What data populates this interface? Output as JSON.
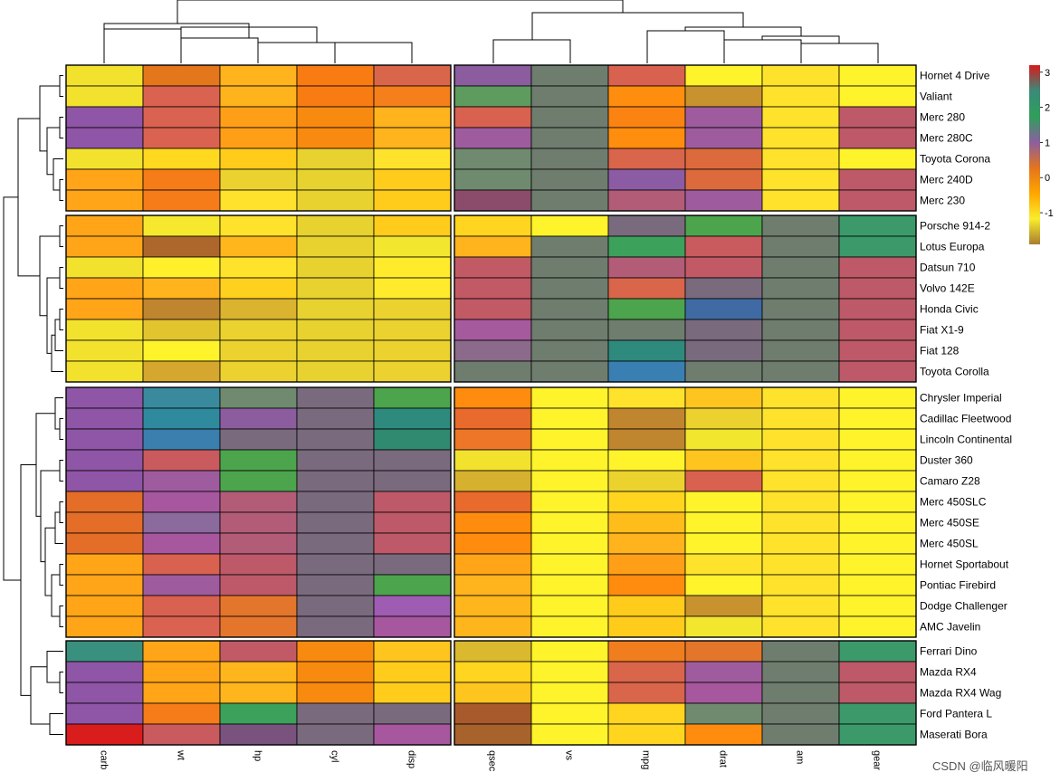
{
  "chart_data": {
    "type": "heatmap",
    "title": "",
    "value_scale": "z-score",
    "colorbar_ticks": [
      3,
      2,
      1,
      0,
      -1
    ],
    "colorbar_ticks_label": [
      "3",
      "2",
      "1",
      "0",
      "-1"
    ],
    "colorbar_range": [
      -1.9,
      3.2
    ],
    "colorbar_stops": [
      "#d7191c",
      "#3a8a7a",
      "#2f9f5a",
      "#8b5fa0",
      "#e2741e",
      "#ffa500",
      "#f8ee2c",
      "#a87d30"
    ],
    "column_groups": [
      [
        "carb",
        "wt",
        "hp",
        "cyl",
        "disp"
      ],
      [
        "qsec",
        "vs",
        "mpg",
        "drat",
        "am",
        "gear"
      ]
    ],
    "row_groups": [
      [
        "Hornet 4 Drive",
        "Valiant",
        "Merc 280",
        "Merc 280C",
        "Toyota Corona",
        "Merc 240D",
        "Merc 230"
      ],
      [
        "Porsche 914-2",
        "Lotus Europa",
        "Datsun 710",
        "Volvo 142E",
        "Honda Civic",
        "Fiat X1-9",
        "Fiat 128",
        "Toyota Corolla"
      ],
      [
        "Chrysler Imperial",
        "Cadillac Fleetwood",
        "Lincoln Continental",
        "Duster 360",
        "Camaro Z28",
        "Merc 450SLC",
        "Merc 450SE",
        "Merc 450SL",
        "Hornet Sportabout",
        "Pontiac Firebird",
        "Dodge Challenger",
        "AMC Javelin"
      ],
      [
        "Ferrari Dino",
        "Mazda RX4",
        "Mazda RX4 Wag",
        "Ford Pantera L",
        "Maserati Bora"
      ]
    ],
    "cells": [
      {
        "car": "Hornet 4 Drive",
        "values": [
          "#f2e22e",
          "#e4761c",
          "#ffb31c",
          "#f97c12",
          "#d9654b",
          "#8b5c9e",
          "#6f7d6f",
          "#d9614f",
          "#fff32b",
          "#ffe22b",
          "#fff32b"
        ]
      },
      {
        "car": "Valiant",
        "values": [
          "#f2e22e",
          "#da6250",
          "#ffb31c",
          "#f97c12",
          "#f57f1a",
          "#5e9b5e",
          "#6f7d6f",
          "#ff8e0e",
          "#c8922f",
          "#ffe22b",
          "#fff32b"
        ]
      },
      {
        "car": "Merc 280",
        "values": [
          "#8f55a6",
          "#da6250",
          "#ff9f18",
          "#f98a10",
          "#ffb31c",
          "#d9614f",
          "#6f7d6f",
          "#fb8312",
          "#9e5c9e",
          "#ffe22b",
          "#bd5968"
        ]
      },
      {
        "car": "Merc 280C",
        "values": [
          "#8f55a6",
          "#da6250",
          "#ff9f18",
          "#f98a10",
          "#ffb31c",
          "#9e5c9e",
          "#6f7d6f",
          "#ff8e0e",
          "#9e5c9e",
          "#ffe22b",
          "#bd5968"
        ]
      },
      {
        "car": "Toyota Corona",
        "values": [
          "#f2e22e",
          "#ffd91f",
          "#ffcc1c",
          "#e7d22f",
          "#ffe22b",
          "#6f8a6f",
          "#6f7d6f",
          "#d9654b",
          "#dd6a3c",
          "#ffe22b",
          "#fff32b"
        ]
      },
      {
        "car": "Merc 240D",
        "values": [
          "#ffa517",
          "#f57c18",
          "#ebd22f",
          "#e7d22f",
          "#ffcc1c",
          "#6f8a6f",
          "#6f7d6f",
          "#8b5ca4",
          "#dd6a3c",
          "#ffe22b",
          "#bd5968"
        ]
      },
      {
        "car": "Merc 230",
        "values": [
          "#ffa517",
          "#f57c18",
          "#ffe22b",
          "#e7d22f",
          "#ffcc1c",
          "#8b4c6c",
          "#6f7d6f",
          "#b25c78",
          "#9e5c9e",
          "#ffe22b",
          "#bd5968"
        ]
      },
      {
        "car": "Porsche 914-2",
        "values": [
          "#ffa517",
          "#f6e82d",
          "#ffe22b",
          "#e7d22f",
          "#ffcc1c",
          "#ffd51f",
          "#fff32b",
          "#7a6a7e",
          "#4ca44c",
          "#6f7d6f",
          "#3c9a6a"
        ]
      },
      {
        "car": "Lotus Europa",
        "values": [
          "#ffa517",
          "#ad662b",
          "#ffb51c",
          "#e7d22f",
          "#f2e62e",
          "#ffb31c",
          "#6f7d6f",
          "#3ca15a",
          "#c95a5e",
          "#6f7d6f",
          "#3c9a6a"
        ]
      },
      {
        "car": "Datsun 710",
        "values": [
          "#f2e22e",
          "#fff02b",
          "#ffe22b",
          "#e7d22f",
          "#ffea2b",
          "#c25a66",
          "#6f7d6f",
          "#b25c78",
          "#c25a66",
          "#6f7d6f",
          "#bd5968"
        ]
      },
      {
        "car": "Volvo 142E",
        "values": [
          "#ffa517",
          "#ffb31c",
          "#ffd11f",
          "#e7d22f",
          "#ffea2b",
          "#c25a66",
          "#6f7d6f",
          "#d9654b",
          "#7a6a7e",
          "#6f7d6f",
          "#bd5968"
        ]
      },
      {
        "car": "Honda Civic",
        "values": [
          "#ffa517",
          "#c0852f",
          "#dab32f",
          "#e7d22f",
          "#ebd22f",
          "#c25a66",
          "#6f7d6f",
          "#4ca44c",
          "#3f6aa4",
          "#6f7d6f",
          "#bd5968"
        ]
      },
      {
        "car": "Fiat X1-9",
        "values": [
          "#f2e22e",
          "#e2c42f",
          "#ebd22f",
          "#e7d22f",
          "#ebd22f",
          "#a65a9e",
          "#6f7d6f",
          "#6f7d6f",
          "#7a6a7e",
          "#6f7d6f",
          "#bd5968"
        ]
      },
      {
        "car": "Fiat 128",
        "values": [
          "#f2e22e",
          "#fff32b",
          "#ebd22f",
          "#e7d22f",
          "#ebd22f",
          "#8b6a8b",
          "#6f7d6f",
          "#2f8a7e",
          "#7a6a7e",
          "#6f7d6f",
          "#bd5968"
        ]
      },
      {
        "car": "Toyota Corolla",
        "values": [
          "#f2e22e",
          "#d6a72f",
          "#ebd22f",
          "#e7d22f",
          "#ebd22f",
          "#6f7d6f",
          "#6f7d6f",
          "#3a7fb2",
          "#6f7d6f",
          "#6f7d6f",
          "#bd5968"
        ]
      },
      {
        "car": "Chrysler Imperial",
        "values": [
          "#8f55a6",
          "#3a8a9e",
          "#6f8a6f",
          "#7a6a7e",
          "#4ca44c",
          "#ff8c0e",
          "#fff32b",
          "#ffe22b",
          "#ffc51f",
          "#ffe22b",
          "#fff32b"
        ]
      },
      {
        "car": "Cadillac Fleetwood",
        "values": [
          "#8f55a6",
          "#2f8a9e",
          "#8b5c9e",
          "#7a6a7e",
          "#2f8a7e",
          "#e86a2c",
          "#fff32b",
          "#c0852f",
          "#ebd22f",
          "#ffe22b",
          "#fff32b"
        ]
      },
      {
        "car": "Lincoln Continental",
        "values": [
          "#8f55a6",
          "#3a7fae",
          "#7a6a7e",
          "#7a6a7e",
          "#2f8a6f",
          "#ed7628",
          "#fff32b",
          "#c0852f",
          "#f2e62e",
          "#ffe22b",
          "#fff32b"
        ]
      },
      {
        "car": "Duster 360",
        "values": [
          "#8f55a6",
          "#c95a5e",
          "#4ca44c",
          "#7a6a7e",
          "#7a6a7e",
          "#f2e22e",
          "#fff32b",
          "#fff32b",
          "#ffc51f",
          "#ffe22b",
          "#fff32b"
        ]
      },
      {
        "car": "Camaro Z28",
        "values": [
          "#8f55a6",
          "#9e5c9e",
          "#4ca44c",
          "#7a6a7e",
          "#7a6a7e",
          "#d6b12f",
          "#fff32b",
          "#ebd22f",
          "#d9614f",
          "#ffe22b",
          "#fff32b"
        ]
      },
      {
        "car": "Merc 450SLC",
        "values": [
          "#e46e28",
          "#a6579e",
          "#b25c78",
          "#7a6a7e",
          "#bd5968",
          "#e86a2c",
          "#fff32b",
          "#ffd51f",
          "#fff32b",
          "#ffe22b",
          "#fff32b"
        ]
      },
      {
        "car": "Merc 450SE",
        "values": [
          "#e46e28",
          "#8b6a9e",
          "#b25c78",
          "#7a6a7e",
          "#bd5968",
          "#ff8c0e",
          "#fff32b",
          "#ffbd1c",
          "#fff32b",
          "#ffe22b",
          "#fff32b"
        ]
      },
      {
        "car": "Merc 450SL",
        "values": [
          "#e46e28",
          "#a6579e",
          "#b25c78",
          "#7a6a7e",
          "#bd5968",
          "#ff8c0e",
          "#fff32b",
          "#ffb31c",
          "#fff32b",
          "#ffe22b",
          "#fff32b"
        ]
      },
      {
        "car": "Hornet Sportabout",
        "values": [
          "#ffa517",
          "#d9614f",
          "#bd5968",
          "#7a6a7e",
          "#7a6a7e",
          "#ffa517",
          "#fff32b",
          "#ff9f18",
          "#ffe22b",
          "#ffe22b",
          "#fff32b"
        ]
      },
      {
        "car": "Pontiac Firebird",
        "values": [
          "#ffa517",
          "#9e5c9e",
          "#bd5968",
          "#7a6a7e",
          "#4ca44c",
          "#ffb31c",
          "#fff32b",
          "#ff8c0e",
          "#fff32b",
          "#ffe22b",
          "#fff32b"
        ]
      },
      {
        "car": "Dodge Challenger",
        "values": [
          "#ffa517",
          "#d9614f",
          "#e4762c",
          "#7a6a7e",
          "#9e5cb2",
          "#ffb51c",
          "#fff32b",
          "#ffcc1c",
          "#c8922f",
          "#ffe22b",
          "#fff32b"
        ]
      },
      {
        "car": "AMC Javelin",
        "values": [
          "#ffa517",
          "#da6250",
          "#e4762c",
          "#7a6a7e",
          "#a6579e",
          "#ffb51c",
          "#fff32b",
          "#ffcc1c",
          "#f2e62e",
          "#ffe22b",
          "#fff32b"
        ]
      },
      {
        "car": "Ferrari Dino",
        "values": [
          "#3a907e",
          "#ffa517",
          "#c25a66",
          "#f98a10",
          "#ffc51f",
          "#dab92f",
          "#fff32b",
          "#f07e1f",
          "#e4762c",
          "#6f7d6f",
          "#3c9a6a"
        ]
      },
      {
        "car": "Mazda RX4",
        "values": [
          "#8f55a6",
          "#ffa517",
          "#ffb51c",
          "#f98a10",
          "#ffcc1c",
          "#ffd51f",
          "#fff32b",
          "#d9654b",
          "#9e5c9e",
          "#6f7d6f",
          "#bd5968"
        ]
      },
      {
        "car": "Mazda RX4 Wag",
        "values": [
          "#8f55a6",
          "#ffa517",
          "#ffb51c",
          "#f98a10",
          "#ffcc1c",
          "#ffc51f",
          "#fff32b",
          "#d9654b",
          "#a6579e",
          "#6f7d6f",
          "#bd5968"
        ]
      },
      {
        "car": "Ford Pantera L",
        "values": [
          "#8f55a6",
          "#f57c18",
          "#3ca15a",
          "#7a6a7e",
          "#7a6a7e",
          "#a95a2c",
          "#fff32b",
          "#ffd51f",
          "#6f8a6f",
          "#6f7d6f",
          "#3c9a6a"
        ]
      },
      {
        "car": "Maserati Bora",
        "values": [
          "#d91c1c",
          "#c95a5e",
          "#7a527e",
          "#7a6a7e",
          "#a6579e",
          "#a8622c",
          "#fff32b",
          "#ffd51f",
          "#ff8c0e",
          "#6f7d6f",
          "#3c9a6a"
        ]
      }
    ]
  },
  "watermark": "CSDN @临风暖阳"
}
